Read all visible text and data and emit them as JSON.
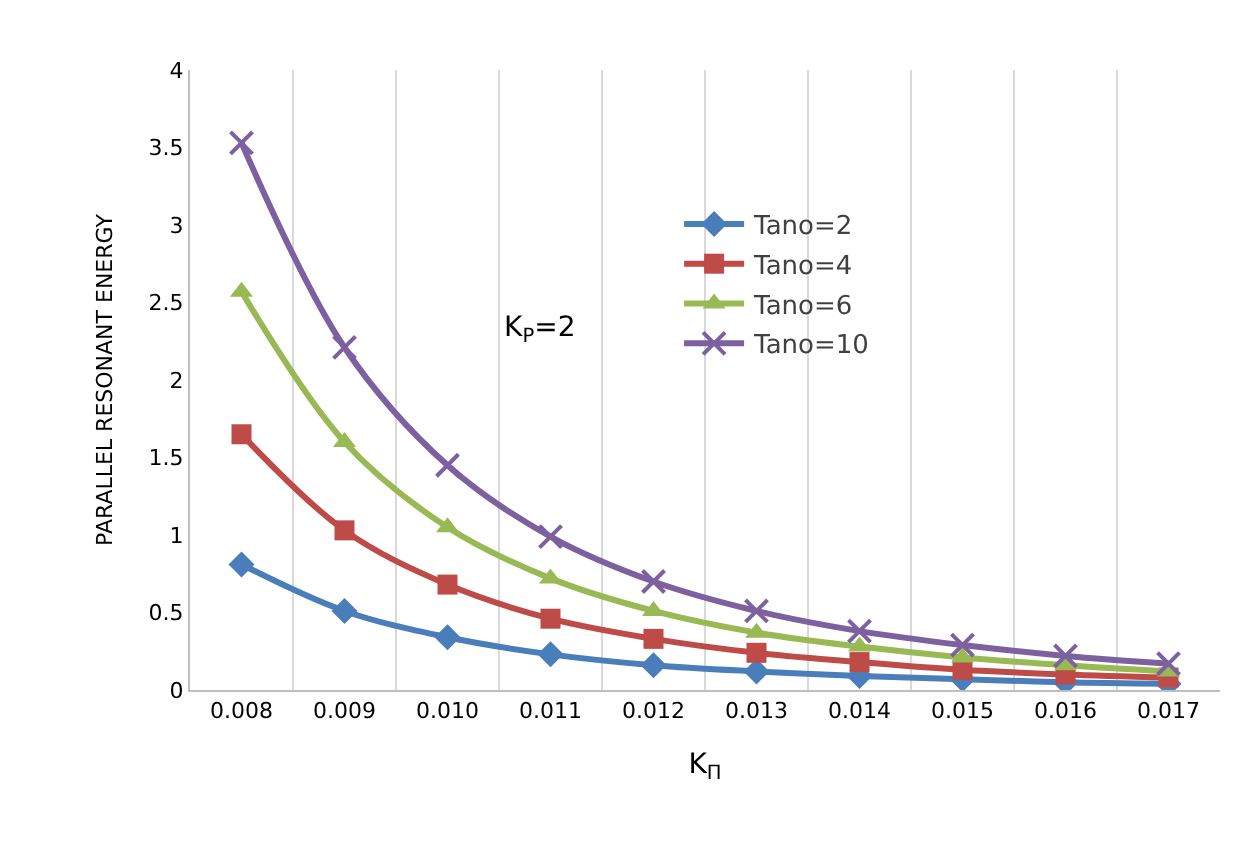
{
  "chart_data": {
    "type": "line",
    "xlabel": "K$_{Π}$",
    "ylabel": "PARALLEL RESONANT ENERGY",
    "categories": [
      "0.008",
      "0.009",
      "0.010",
      "0.011",
      "0.012",
      "0.013",
      "0.014",
      "0.015",
      "0.016",
      "0.017"
    ],
    "series": [
      {
        "name": "Tano=2",
        "color": "#4a7ebb",
        "marker": "diamond",
        "values": [
          0.81,
          0.51,
          0.34,
          0.23,
          0.16,
          0.12,
          0.09,
          0.07,
          0.05,
          0.04
        ]
      },
      {
        "name": "Tano=4",
        "color": "#be4b48",
        "marker": "square",
        "values": [
          1.65,
          1.03,
          0.68,
          0.46,
          0.33,
          0.24,
          0.18,
          0.13,
          0.1,
          0.08
        ]
      },
      {
        "name": "Tano=6",
        "color": "#98b954",
        "marker": "triangle",
        "values": [
          2.57,
          1.6,
          1.05,
          0.72,
          0.51,
          0.37,
          0.28,
          0.21,
          0.16,
          0.12
        ]
      },
      {
        "name": "Tano=10",
        "color": "#7d60a0",
        "marker": "cross",
        "values": [
          3.53,
          2.21,
          1.45,
          0.99,
          0.7,
          0.51,
          0.38,
          0.29,
          0.22,
          0.17
        ]
      }
    ],
    "ylim": [
      0,
      4
    ],
    "yticks": [
      0,
      0.5,
      1,
      1.5,
      2,
      2.5,
      3,
      3.5,
      4
    ],
    "grid": "x",
    "legend": "top",
    "annotations": [
      "K$_{P}$=2"
    ]
  }
}
